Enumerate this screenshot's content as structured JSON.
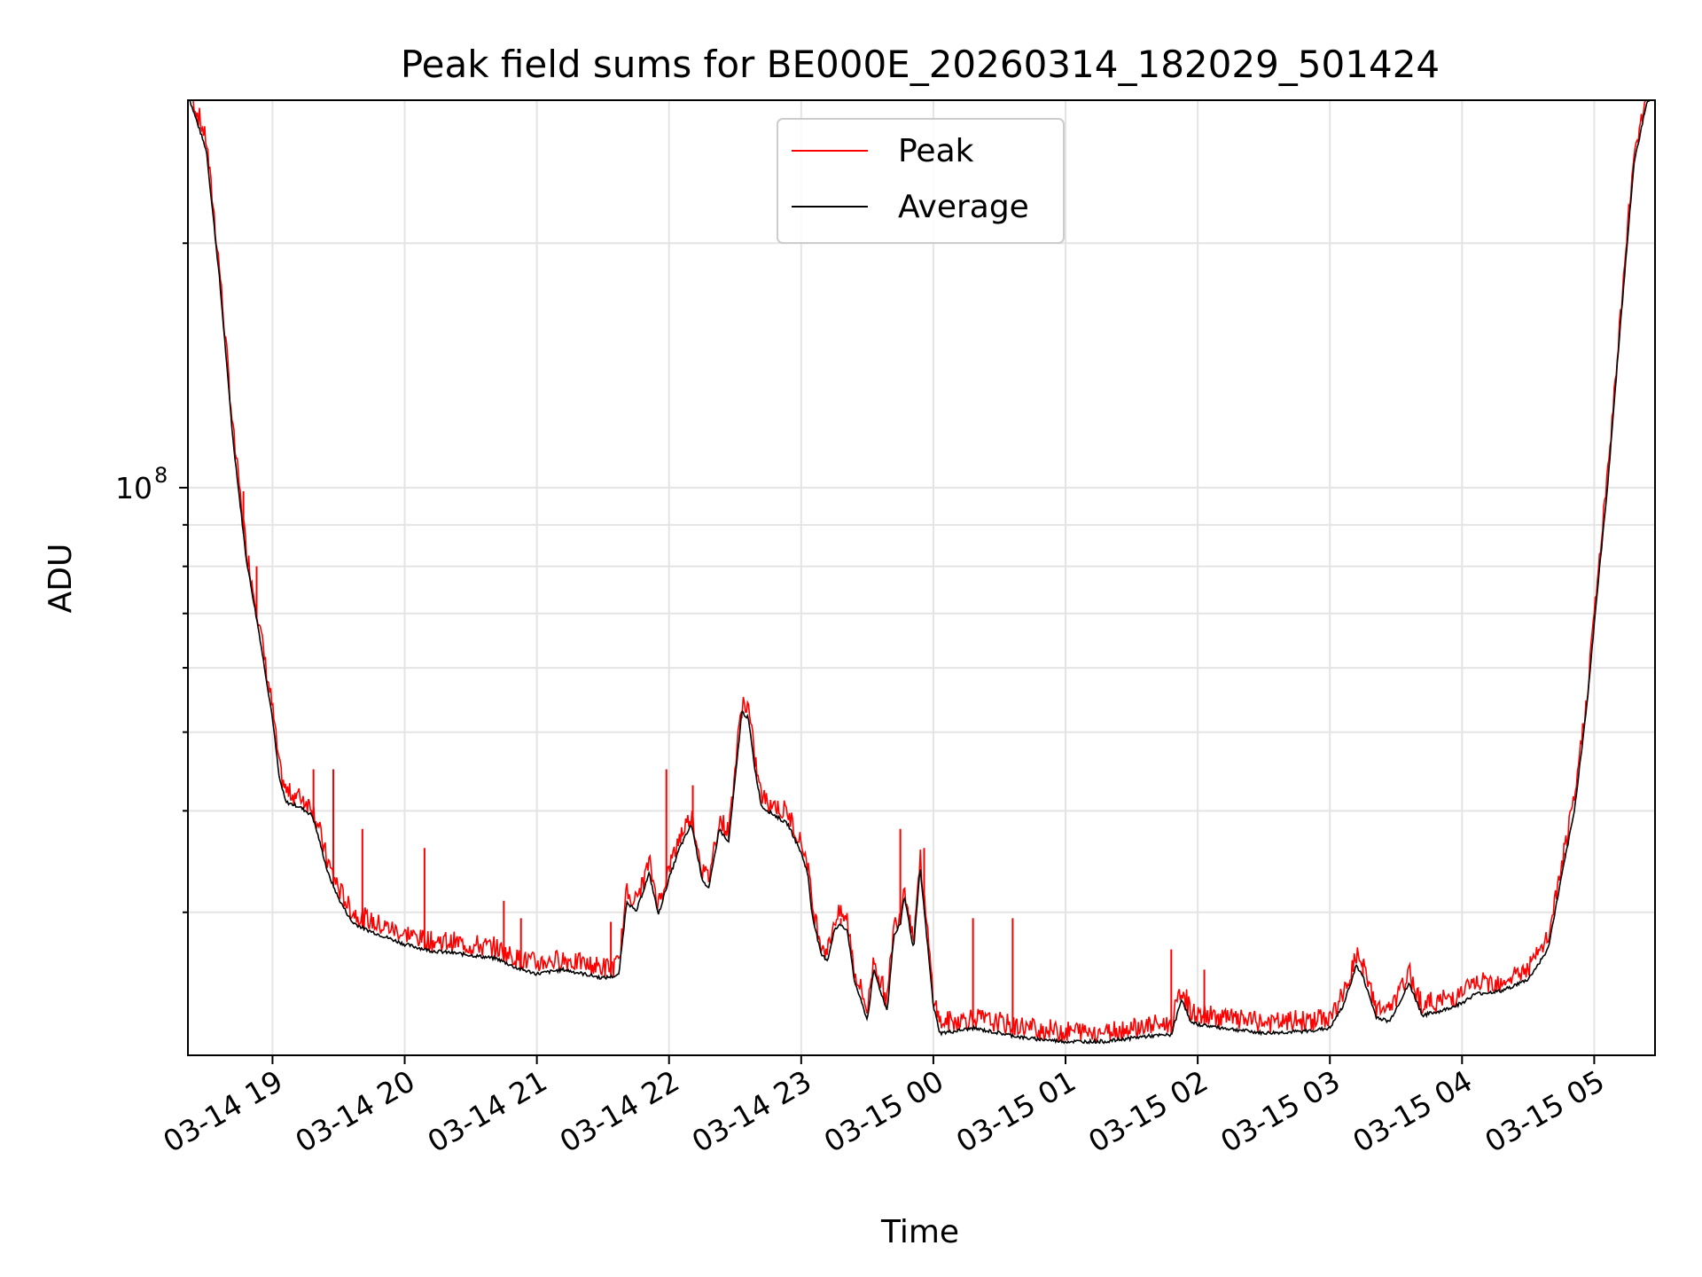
{
  "chart_data": {
    "type": "line",
    "title": "Peak field sums for BE000E_20260314_182029_501424",
    "xlabel": "Time",
    "ylabel": "ADU",
    "yscale": "log",
    "ylim": [
      20000000,
      300000000
    ],
    "xlim": [
      -0.64,
      10.46
    ],
    "grid": true,
    "legend_position": "top-center",
    "x_ticks": [
      {
        "value": 0,
        "label": "03-14 19"
      },
      {
        "value": 1,
        "label": "03-14 20"
      },
      {
        "value": 2,
        "label": "03-14 21"
      },
      {
        "value": 3,
        "label": "03-14 22"
      },
      {
        "value": 4,
        "label": "03-14 23"
      },
      {
        "value": 5,
        "label": "03-15 00"
      },
      {
        "value": 6,
        "label": "03-15 01"
      },
      {
        "value": 7,
        "label": "03-15 02"
      },
      {
        "value": 8,
        "label": "03-15 03"
      },
      {
        "value": 9,
        "label": "03-15 04"
      },
      {
        "value": 10,
        "label": "03-15 05"
      }
    ],
    "y_major_ticks": [
      {
        "value": 100000000,
        "base": "10",
        "exp": "8"
      }
    ],
    "y_minor_ticks": [
      30000000,
      40000000,
      50000000,
      60000000,
      70000000,
      80000000,
      90000000,
      200000000
    ],
    "x_unit": "hours since 03-14 19:00",
    "series": [
      {
        "name": "Average",
        "color": "#000000",
        "points": [
          [
            -0.64,
            305000000
          ],
          [
            -0.5,
            260000000
          ],
          [
            -0.4,
            180000000
          ],
          [
            -0.3,
            115000000
          ],
          [
            -0.2,
            82000000
          ],
          [
            -0.1,
            66000000
          ],
          [
            0.0,
            52000000
          ],
          [
            0.05,
            44000000
          ],
          [
            0.1,
            41000000
          ],
          [
            0.2,
            40500000
          ],
          [
            0.3,
            39500000
          ],
          [
            0.35,
            37000000
          ],
          [
            0.42,
            33500000
          ],
          [
            0.5,
            31200000
          ],
          [
            0.6,
            29200000
          ],
          [
            0.7,
            28600000
          ],
          [
            0.8,
            28200000
          ],
          [
            1.0,
            27400000
          ],
          [
            1.2,
            26900000
          ],
          [
            1.4,
            26700000
          ],
          [
            1.7,
            26300000
          ],
          [
            1.85,
            25600000
          ],
          [
            2.0,
            25200000
          ],
          [
            2.2,
            25500000
          ],
          [
            2.5,
            24900000
          ],
          [
            2.62,
            25100000
          ],
          [
            2.68,
            31000000
          ],
          [
            2.75,
            30000000
          ],
          [
            2.85,
            33500000
          ],
          [
            2.92,
            29800000
          ],
          [
            3.0,
            33000000
          ],
          [
            3.08,
            36000000
          ],
          [
            3.17,
            38500000
          ],
          [
            3.25,
            33000000
          ],
          [
            3.3,
            32000000
          ],
          [
            3.38,
            38000000
          ],
          [
            3.45,
            36500000
          ],
          [
            3.52,
            47000000
          ],
          [
            3.55,
            53000000
          ],
          [
            3.6,
            52000000
          ],
          [
            3.65,
            45000000
          ],
          [
            3.7,
            40500000
          ],
          [
            3.8,
            39500000
          ],
          [
            3.9,
            38500000
          ],
          [
            4.0,
            35500000
          ],
          [
            4.05,
            33500000
          ],
          [
            4.08,
            30000000
          ],
          [
            4.15,
            26600000
          ],
          [
            4.2,
            26200000
          ],
          [
            4.25,
            28500000
          ],
          [
            4.3,
            29000000
          ],
          [
            4.35,
            28500000
          ],
          [
            4.4,
            24800000
          ],
          [
            4.5,
            22100000
          ],
          [
            4.55,
            25500000
          ],
          [
            4.6,
            24000000
          ],
          [
            4.65,
            22700000
          ],
          [
            4.7,
            28000000
          ],
          [
            4.75,
            29000000
          ],
          [
            4.78,
            31500000
          ],
          [
            4.85,
            27000000
          ],
          [
            4.9,
            34000000
          ],
          [
            4.95,
            28000000
          ],
          [
            5.0,
            23000000
          ],
          [
            5.05,
            21300000
          ],
          [
            5.15,
            21400000
          ],
          [
            5.3,
            21600000
          ],
          [
            5.5,
            21300000
          ],
          [
            5.7,
            21000000
          ],
          [
            6.0,
            20800000
          ],
          [
            6.3,
            20800000
          ],
          [
            6.6,
            21100000
          ],
          [
            6.8,
            21200000
          ],
          [
            6.88,
            23500000
          ],
          [
            6.95,
            21900000
          ],
          [
            7.2,
            21600000
          ],
          [
            7.5,
            21300000
          ],
          [
            7.8,
            21400000
          ],
          [
            8.0,
            21600000
          ],
          [
            8.1,
            23000000
          ],
          [
            8.2,
            25800000
          ],
          [
            8.25,
            25000000
          ],
          [
            8.35,
            22300000
          ],
          [
            8.45,
            22000000
          ],
          [
            8.6,
            24500000
          ],
          [
            8.7,
            22400000
          ],
          [
            8.85,
            22700000
          ],
          [
            9.0,
            23200000
          ],
          [
            9.1,
            23800000
          ],
          [
            9.3,
            24000000
          ],
          [
            9.5,
            24800000
          ],
          [
            9.65,
            27000000
          ],
          [
            9.75,
            33000000
          ],
          [
            9.85,
            40000000
          ],
          [
            9.95,
            55000000
          ],
          [
            10.0,
            68000000
          ],
          [
            10.1,
            100000000
          ],
          [
            10.2,
            160000000
          ],
          [
            10.3,
            250000000
          ],
          [
            10.4,
            300000000
          ],
          [
            10.46,
            302000000
          ]
        ]
      },
      {
        "name": "Peak",
        "color": "#ff0000",
        "spikes": [
          [
            -0.22,
            99000000
          ],
          [
            -0.12,
            80000000
          ],
          [
            0.31,
            45000000
          ],
          [
            0.46,
            45000000
          ],
          [
            0.68,
            38000000
          ],
          [
            1.15,
            36000000
          ],
          [
            1.75,
            31000000
          ],
          [
            1.88,
            29500000
          ],
          [
            2.56,
            29200000
          ],
          [
            2.98,
            45000000
          ],
          [
            3.18,
            43000000
          ],
          [
            3.55,
            52000000
          ],
          [
            4.3,
            29500000
          ],
          [
            4.75,
            38000000
          ],
          [
            4.93,
            36000000
          ],
          [
            5.3,
            29500000
          ],
          [
            5.6,
            29500000
          ],
          [
            6.8,
            27000000
          ],
          [
            7.05,
            25500000
          ],
          [
            8.25,
            26000000
          ],
          [
            9.78,
            35500000
          ]
        ]
      }
    ]
  }
}
